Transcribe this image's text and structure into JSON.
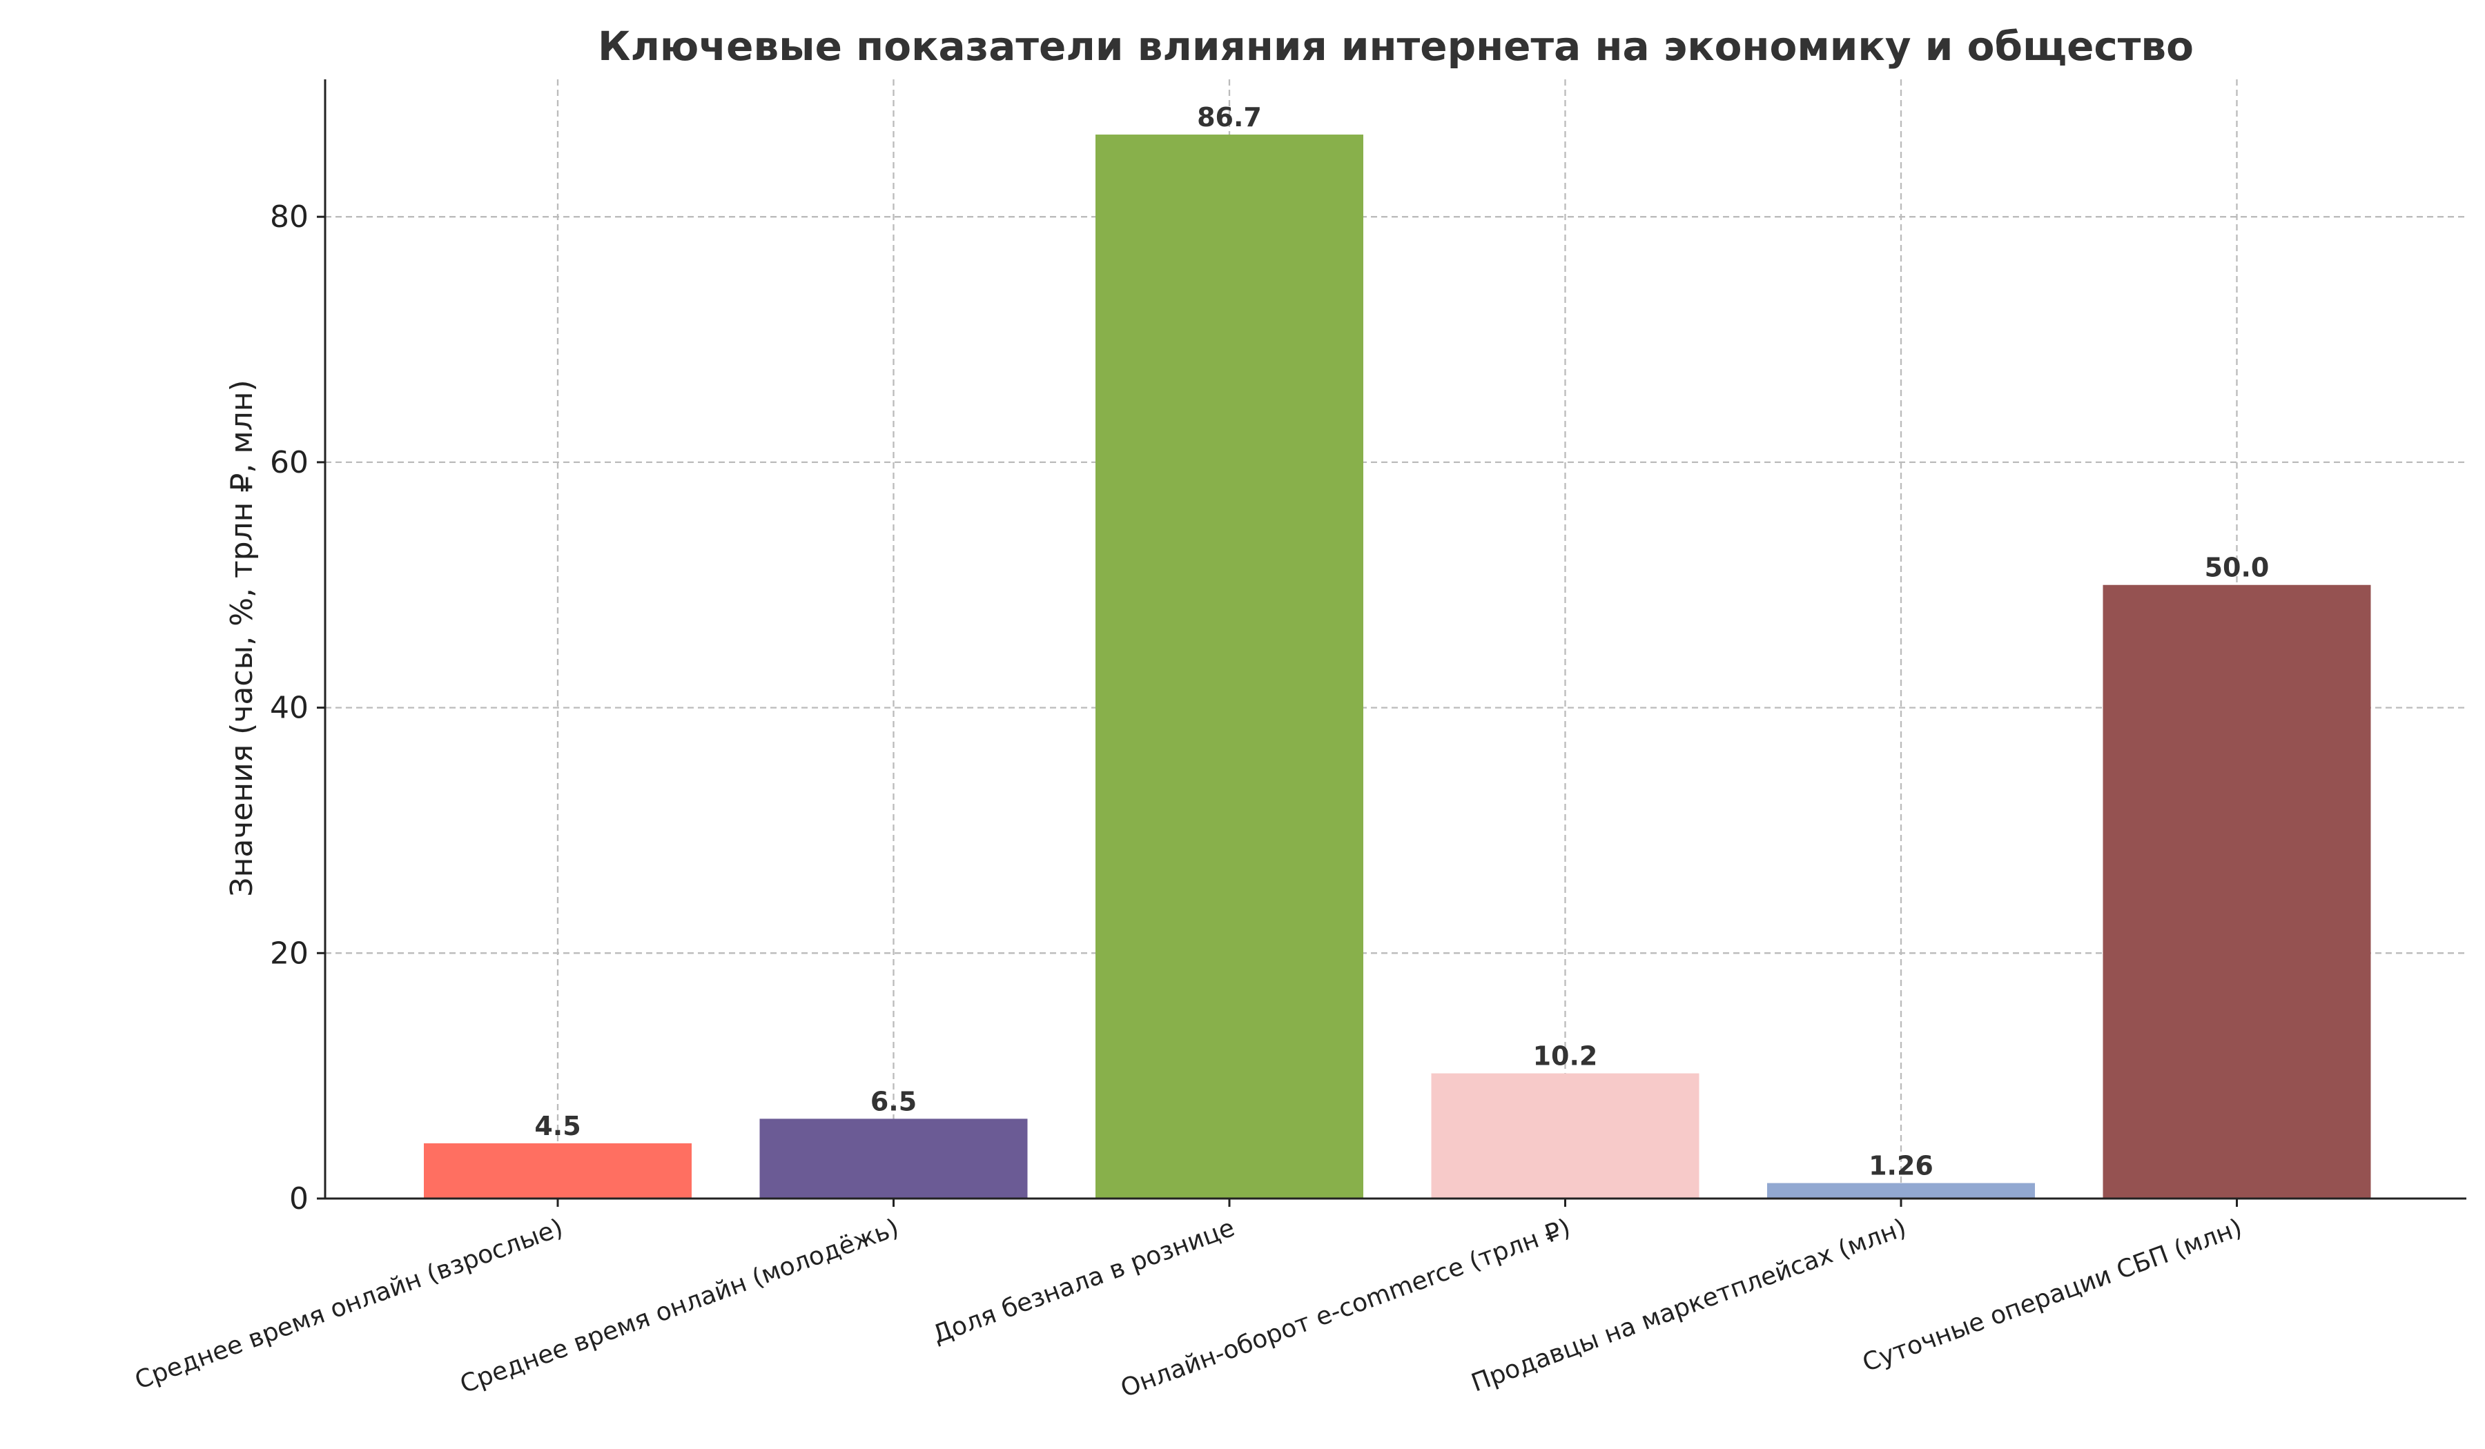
{
  "chart_data": {
    "type": "bar",
    "title": "Ключевые показатели влияния интернета на экономику и общество",
    "xlabel": "",
    "ylabel": "Значения (часы, %, трлн ₽, млн)",
    "categories": [
      "Среднее время онлайн (взрослые)",
      "Среднее время онлайн (молодёжь)",
      "Доля безнала в рознице",
      "Онлайн-оборот e-commerce (трлн ₽)",
      "Продавцы на маркетплейсах (млн)",
      "Суточные операции СБП (млн)"
    ],
    "values": [
      4.5,
      6.5,
      86.7,
      10.2,
      1.26,
      50.0
    ],
    "data_labels": [
      "4.5",
      "6.5",
      "86.7",
      "10.2",
      "1.26",
      "50.0"
    ],
    "colors": [
      "#ff6f61",
      "#6b5b95",
      "#88b04b",
      "#f7cac9",
      "#92a8d1",
      "#955251"
    ],
    "ylim": [
      0,
      91.2
    ],
    "yticks": [
      0,
      20,
      40,
      60,
      80
    ],
    "grid": true
  }
}
